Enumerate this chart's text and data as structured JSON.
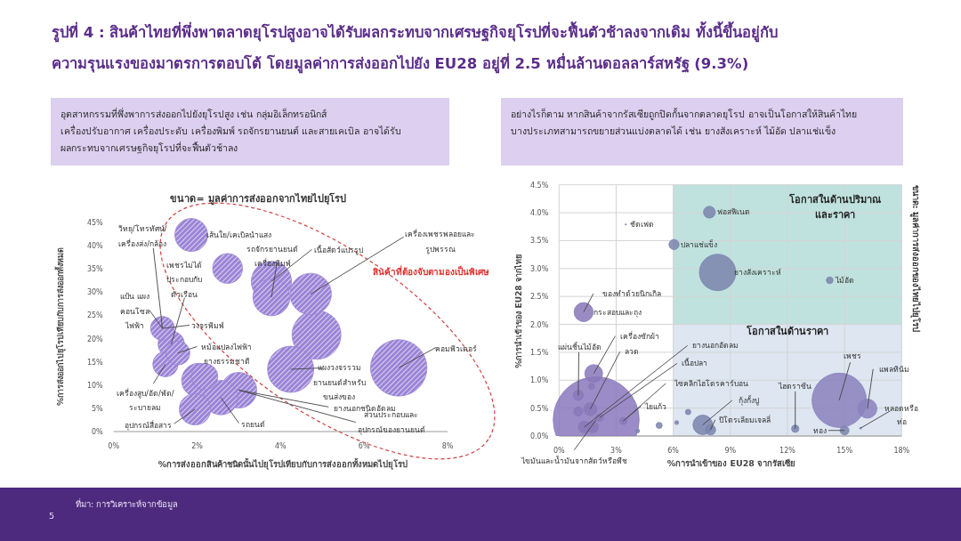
{
  "chart_data": [
    {
      "type": "other",
      "title": "รูปที่ 4 : สินค้าไทยที่พึ่งพาตลาดยุโรปสูงอาจได้รับผลกระทบจากเศรษฐกิจยุโรปที่จะฟื้นตัวช้าลงจากเดิม ทั้งนี้ขึ้นอยู่กับ\nความรุนแรงของมาตรการตอบโต้ โดยมูลค่าการส่งออกไปยัง EU28 อยู่ที่ 2.5 หมื่นล้านดอลลาร์สหรัฐ (9.3%)",
      "annotations": [
        "อุตสาหกรรมที่พึ่งพาการส่งออกไปยังยุโรปสูง เช่น กลุ่มอิเล็กทรอนิกส์\nเครื่องปรับอากาศ เครื่องประดับ เครื่องพิมพ์ รถจักรยานยนต์  และสายเคเบิล อาจได้รับ\nผลกระทบจากเศรษฐกิจยุโรปที่จะฟื้นตัวช้าลง",
        "อย่างไรก็ตาม หากสินค้าจากรัสเซียถูกปิดกั้นจากตลาดยุโรป  อาจเป็นโอกาสให้สินค้าไทย\nบางประเภทสามารถขยายส่วนแบ่งตลาดได้ เช่น ยางสังเคราะห์ ไม้อัด ปลาแช่แข็ง",
        "ที่มา: การวิเคราะห์จากข้อมูล",
        "5"
      ]
    },
    {
      "type": "bubble",
      "title": "ขนาด= มูลค่าการส่งออกจากไทยไปยุโรป",
      "xlabel": "%การส่งออกสินค้าชนิดนั้นไปยุโรปเทียบกับการส่งออกทั้งหมดไปยุโรป",
      "ylabel": "%การส่งออกไปยุโรปเทียบกับการส่งออกทั้งหมด",
      "x": [
        1.86,
        2.73,
        3.78,
        3.78,
        4.72,
        4.86,
        4.24,
        6.83,
        1.17,
        1.38,
        1.24,
        2.04,
        1.95,
        2.57,
        3.0,
        2.18,
        1.54
      ],
      "values": [
        42.3,
        35.1,
        32.3,
        28.9,
        29.6,
        20.8,
        13.4,
        13.7,
        22.2,
        18.8,
        14.5,
        11.0,
        4.8,
        7.3,
        8.9,
        11.8,
        16.9
      ],
      "sizes": [
        0.34,
        0.28,
        0.51,
        0.43,
        0.54,
        0.75,
        0.67,
        1,
        0.18,
        0.22,
        0.2,
        0.37,
        0.31,
        0.37,
        0.4,
        0.22,
        0.18
      ],
      "color": "#9a84d6",
      "xlim": [
        0,
        8
      ],
      "ylim": [
        0,
        45
      ],
      "xticks": [
        {
          "value": 0,
          "label": "0%"
        },
        {
          "value": 2,
          "label": "2%"
        },
        {
          "value": 4,
          "label": "4%"
        },
        {
          "value": 6,
          "label": "6%"
        },
        {
          "value": 8,
          "label": "8%"
        }
      ],
      "yticks": [
        {
          "value": 0,
          "label": "0%"
        },
        {
          "value": 5,
          "label": "5%"
        },
        {
          "value": 10,
          "label": "10%"
        },
        {
          "value": 15,
          "label": "15%"
        },
        {
          "value": 20,
          "label": "20%"
        },
        {
          "value": 25,
          "label": "25%"
        },
        {
          "value": 30,
          "label": "30%"
        },
        {
          "value": 35,
          "label": "35%"
        },
        {
          "value": 40,
          "label": "40%"
        },
        {
          "value": 45,
          "label": "45%"
        }
      ],
      "grid": false,
      "annotations": [
        {
          "text": "วิทยุ/โทรทัศน์/\nเครื่องส่ง/กล้อง",
          "x": 1.17,
          "y": 22.2
        },
        {
          "text": "เส้นใย/เคเบิลนำแสง",
          "x": 1.86,
          "y": 42.3
        },
        {
          "text": "รถจักรยานยนต์\nเครื่องพิมพ์",
          "x": 3.78,
          "y": 28.9
        },
        {
          "text": "เนื้อสัตว์แปรรูป",
          "x": 3.78,
          "y": 32.3
        },
        {
          "text": "เครื่องเพชรพลอยและ\nรูปพรรณ",
          "x": 4.72,
          "y": 29.6
        },
        "สินค้าที่ต้องจับตามองเป็นพิเศษ",
        {
          "text": "เพชรไม่ได้\nประกอบกับ\nตัวเรือน",
          "x": 1.38,
          "y": 18.8
        },
        {
          "text": "แป้น แผง\nคอนโซล\nไฟฟ้า",
          "x": 1.17,
          "y": 22.2
        },
        {
          "text": "วงจรพิมพ์",
          "x": 1.17,
          "y": 22.2
        },
        {
          "text": "หม้อแปลงไฟฟ้า\nยางธรรมชาติ",
          "x": 1.54,
          "y": 16.9
        },
        {
          "text": "เครื่องสูบ/อัด/พัด/\nระบายลม",
          "x": 1.24,
          "y": 14.5
        },
        {
          "text": "อุปกรณ์สื่อสาร",
          "x": 1.95,
          "y": 4.8
        },
        {
          "text": "รถยนต์",
          "x": 2.57,
          "y": 7.3
        },
        {
          "text": "แผงวงจรรวม\nยานยนต์สำหรับ\nขนส่งของ",
          "x": 4.24,
          "y": 13.4
        },
        {
          "text": "ยางนอกชนิดอัดลม",
          "x": 3.0,
          "y": 8.9
        },
        {
          "text": "ส่วนประกอบและ\nอุปกรณ์ของยานยนต์",
          "x": 3.0,
          "y": 8.9
        },
        {
          "text": "คอมพิวเตอร์",
          "x": 6.83,
          "y": 13.7
        }
      ]
    },
    {
      "type": "bubble",
      "xlabel": "%การนำเข้าของ EU28 จากรัสเซีย",
      "ylabel": "%การนำเข้าของ EU28 จากไทย",
      "x": [
        3.5,
        7.9,
        6.04,
        8.33,
        14.22,
        1.29,
        1.82,
        1.95,
        1.01,
        1.71,
        1.01,
        1.64,
        1.32,
        1.76,
        2.13,
        3.38,
        4.13,
        5.26,
        6.18,
        6.78,
        7.55,
        7.96,
        12.41,
        14.72,
        16.2,
        15.0,
        15.84
      ],
      "values": [
        3.79,
        4.01,
        3.43,
        2.93,
        2.79,
        2.22,
        1.12,
        0.29,
        0.73,
        0.89,
        0.44,
        0.48,
        0.16,
        0.16,
        0.33,
        0.27,
        0.09,
        0.19,
        0.24,
        0.43,
        0.2,
        0.11,
        0.13,
        0.64,
        0.49,
        0.1,
        0.14
      ],
      "sizes": [
        0.0002,
        0.019,
        0.014,
        0.18,
        0.006,
        0.049,
        0.043,
        1,
        0.014,
        0.005,
        0.011,
        0.023,
        0.019,
        0.019,
        0.008,
        0.007,
        0.002,
        0.005,
        0.002,
        0.004,
        0.052,
        0.014,
        0.007,
        0.4,
        0.049,
        0.011,
        0.0004
      ],
      "colors": [
        "#7a84ad",
        "#7a84ad",
        "#7a84ad",
        "#7a84ad",
        "#7a84ad",
        "#8878b8",
        "#8878b8",
        "#8a78bd",
        "#8878b8",
        "#8878b8",
        "#8878b8",
        "#8878b8",
        "#8878b8",
        "#8878b8",
        "#8878b8",
        "#8878b8",
        "#7a84ad",
        "#7a84ad",
        "#7a84ad",
        "#7a84ad",
        "#7a84ad",
        "#7a84ad",
        "#7a84ad",
        "#8a80bd",
        "#8a80bd",
        "#7a84ad",
        "#7a84ad"
      ],
      "xlim": [
        0,
        18
      ],
      "ylim": [
        0,
        4.5
      ],
      "xticks": [
        {
          "value": 0,
          "label": "0%"
        },
        {
          "value": 3,
          "label": "3%"
        },
        {
          "value": 6,
          "label": "6%"
        },
        {
          "value": 9,
          "label": "9%"
        },
        {
          "value": 12,
          "label": "12%"
        },
        {
          "value": 15,
          "label": "15%"
        },
        {
          "value": 18,
          "label": "18%"
        }
      ],
      "yticks": [
        {
          "value": 0,
          "label": "0.0%"
        },
        {
          "value": 0.5,
          "label": "0.5%"
        },
        {
          "value": 1,
          "label": "1.0%"
        },
        {
          "value": 1.5,
          "label": "1.5%"
        },
        {
          "value": 2,
          "label": "2.0%"
        },
        {
          "value": 2.5,
          "label": "2.5%"
        },
        {
          "value": 3,
          "label": "3.0%"
        },
        {
          "value": 3.5,
          "label": "3.5%"
        },
        {
          "value": 4,
          "label": "4.0%"
        },
        {
          "value": 4.5,
          "label": "4.5%"
        }
      ],
      "grid": true,
      "bands": [
        {
          "axis": "x",
          "from": 6,
          "to": 18,
          "label": "โอกาสในด้านราคา",
          "color": "#dde6f1"
        },
        {
          "axis": "y",
          "from": 2,
          "to": 4.5,
          "label": "โอกาสในด้านปริมาณ\nและราคา",
          "color": "#bfe2de"
        }
      ],
      "annotations": [
        {
          "text": "ชัดเฟด",
          "x": 3.5,
          "y": 3.79
        },
        {
          "text": "ฟอสฟิเนต",
          "x": 7.9,
          "y": 4.01
        },
        {
          "text": "ปลาแช่แข็ง",
          "x": 6.04,
          "y": 3.43
        },
        {
          "text": "ยางสังเคราะห์",
          "x": 8.33,
          "y": 2.93
        },
        {
          "text": "ไม้อัด",
          "x": 14.22,
          "y": 2.79
        },
        {
          "text": "ของทำด้วยนิกเกิล",
          "x": 1.29,
          "y": 2.22
        },
        {
          "text": "กระสอบและถุง",
          "x": 1.29,
          "y": 2.22
        },
        {
          "text": "เครื่องซักผ้า",
          "x": 1.82,
          "y": 1.12
        },
        {
          "text": "แผ่นชิ้นไม้อัด",
          "x": 1.01,
          "y": 0.73
        },
        {
          "text": "ลวด",
          "x": 1.64,
          "y": 0.48
        },
        {
          "text": "ยางนอกอัดลม",
          "x": 1.32,
          "y": 0.16
        },
        {
          "text": "เนื้อปลา",
          "x": 2.13,
          "y": 0.33
        },
        {
          "text": "ไซคลิกไฮโดรคาร์บอน",
          "x": 3.38,
          "y": 0.27
        },
        {
          "text": "ไขมันและน้ำมันจากสัตว์หรือพืช",
          "x": 1.95,
          "y": 0.29
        },
        {
          "text": "ไยแก้ว",
          "x": 3.38,
          "y": 0.27
        },
        {
          "text": "กุ้งกั้งปู",
          "x": 7.55,
          "y": 0.2
        },
        {
          "text": "ปิโตรเลียมเจลลี่",
          "x": 7.96,
          "y": 0.11
        },
        {
          "text": "ไฮดราซีน",
          "x": 12.41,
          "y": 0.13
        },
        {
          "text": "เพชร",
          "x": 14.72,
          "y": 0.64
        },
        {
          "text": "แพลทินัม",
          "x": 16.2,
          "y": 0.49
        },
        {
          "text": "หลอดหรือ\nท่อ",
          "x": 15.84,
          "y": 0.14
        },
        {
          "text": "ทอง",
          "x": 15.0,
          "y": 0.1
        },
        "ขนาด: มูลค่าการส่งออกของไทยไปยุโรป"
      ]
    }
  ]
}
